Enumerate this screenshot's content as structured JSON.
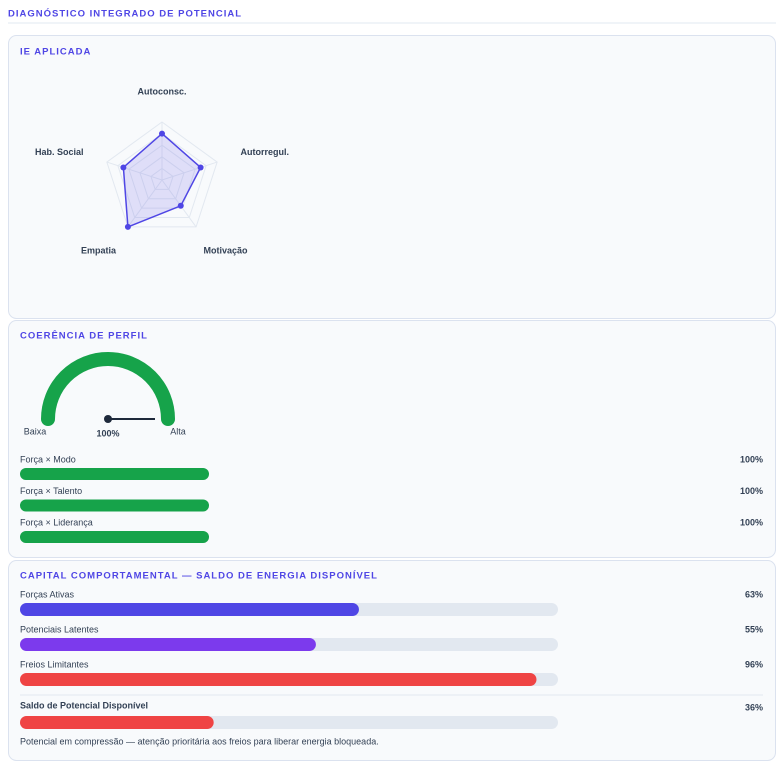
{
  "header": {
    "title": "DIAGNÓSTICO INTEGRADO DE POTENCIAL"
  },
  "ie": {
    "title": "IE APLICADA",
    "chart_data": {
      "type": "radar",
      "categories": [
        "Autoconsc.",
        "Autorregul.",
        "Motivação",
        "Empatia",
        "Hab. Social"
      ],
      "values": [
        80,
        70,
        55,
        100,
        70
      ],
      "rlim": [
        0,
        100
      ],
      "color": "#4f46e5"
    }
  },
  "profile": {
    "title": "COERÊNCIA DE PERFIL",
    "gauge": {
      "value": 100,
      "value_label": "100%",
      "lim": [
        0,
        100
      ],
      "low_label": "Baixa",
      "high_label": "Alta",
      "color": "#16a34a"
    },
    "bars": {
      "categories": [
        "Força × Modo",
        "Força × Talento",
        "Força × Liderança"
      ],
      "values": [
        100,
        100,
        100
      ],
      "value_labels": [
        "100%",
        "100%",
        "100%"
      ],
      "xlim": [
        0,
        100
      ],
      "color": "#16a34a"
    }
  },
  "capital": {
    "title": "CAPITAL COMPORTAMENTAL — SALDO DE ENERGIA DISPONÍVEL",
    "bars": {
      "categories": [
        "Forças Ativas",
        "Potenciais Latentes",
        "Freios Limitantes"
      ],
      "values": [
        63,
        55,
        96
      ],
      "value_labels": [
        "63%",
        "55%",
        "96%"
      ],
      "colors": [
        "#4f46e5",
        "#7c3aed",
        "#ef4444"
      ],
      "xlim": [
        0,
        100
      ]
    },
    "balance": {
      "label": "Saldo de Potencial Disponível",
      "value": 36,
      "value_label": "36%",
      "color": "#ef4444"
    },
    "note": "Potencial em compressão — atenção prioritária aos freios para liberar energia bloqueada."
  }
}
